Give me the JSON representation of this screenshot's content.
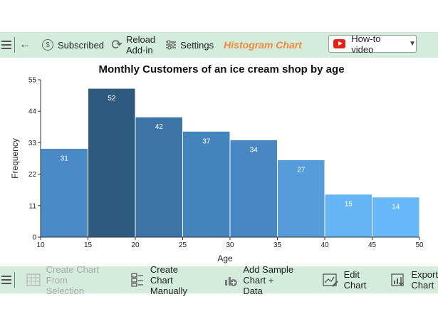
{
  "toolbar": {
    "subscribed_label": "Subscribed",
    "reload_label_1": "Reload",
    "reload_label_2": "Add-in",
    "settings_label": "Settings",
    "histogram_label": "Histogram Chart",
    "howto_label": "How-to video"
  },
  "bottom_toolbar": {
    "create_selection_1": "Create Chart",
    "create_selection_2": "From Selection",
    "create_manual_1": "Create Chart",
    "create_manual_2": "Manually",
    "add_sample_1": "Add Sample",
    "add_sample_2": "Chart + Data",
    "edit_1": "Edit",
    "edit_2": "Chart",
    "export_1": "Export",
    "export_2": "Chart"
  },
  "colors": {
    "toolbar_bg": "#d4ecdc",
    "accent_orange": "#ee8a3c",
    "youtube_red": "#e62117"
  },
  "chart_data": {
    "type": "bar",
    "title": "Monthly Customers of an ice cream shop by age",
    "xlabel": "Age",
    "ylabel": "Frequency",
    "bins": [
      [
        10,
        15
      ],
      [
        15,
        20
      ],
      [
        20,
        25
      ],
      [
        25,
        30
      ],
      [
        30,
        35
      ],
      [
        35,
        40
      ],
      [
        40,
        45
      ],
      [
        45,
        50
      ]
    ],
    "values": [
      31,
      52,
      42,
      37,
      34,
      27,
      15,
      14
    ],
    "colors": [
      "#4a8ac6",
      "#2e5a80",
      "#3d74a8",
      "#4484bd",
      "#4887c2",
      "#549cda",
      "#64b4f6",
      "#66b8fa"
    ],
    "xlim": [
      10,
      50
    ],
    "ylim": [
      0,
      55
    ],
    "xticks": [
      10,
      15,
      20,
      25,
      30,
      35,
      40,
      45,
      50
    ],
    "yticks": [
      0,
      11,
      22,
      33,
      44,
      55
    ],
    "grid": false,
    "legend": "none"
  }
}
